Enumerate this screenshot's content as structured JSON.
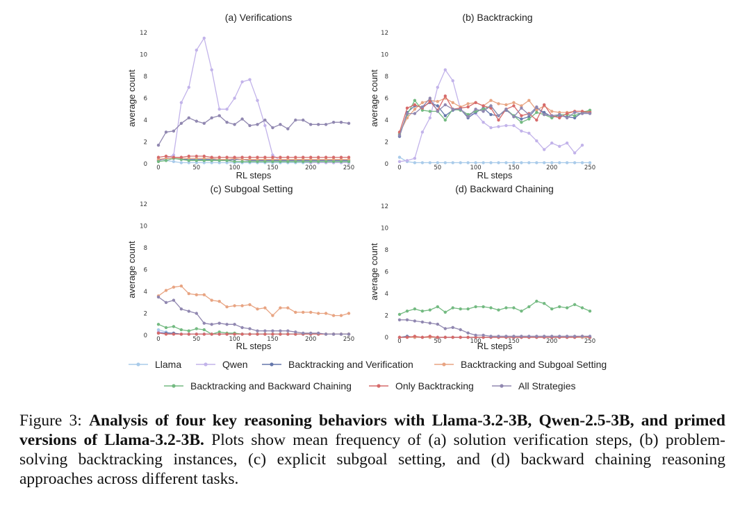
{
  "figure": {
    "caption_label": "Figure 3:",
    "caption_bold": "Analysis of four key reasoning behaviors with Llama-3.2-3B, Qwen-2.5-3B, and primed versions of Llama-3.2-3B.",
    "caption_text": "Plots show mean frequency of (a) solution verification steps, (b) problem-solving backtracking instances, (c) explicit subgoal setting, and (d) backward chaining reasoning approaches across different tasks."
  },
  "legend": {
    "items": [
      {
        "name": "Llama",
        "color": "#a9cbea"
      },
      {
        "name": "Qwen",
        "color": "#c2b3ea"
      },
      {
        "name": "Backtracking and Verification",
        "color": "#6577ab"
      },
      {
        "name": "Backtracking and Subgoal Setting",
        "color": "#e8a482"
      },
      {
        "name": "Backtracking and Backward Chaining",
        "color": "#73ba81"
      },
      {
        "name": "Only Backtracking",
        "color": "#d66a6a"
      },
      {
        "name": "All Strategies",
        "color": "#9087b0"
      }
    ]
  },
  "chart_data": [
    {
      "type": "line",
      "title": "(a) Verifications",
      "xlabel": "RL steps",
      "ylabel": "average count",
      "xlim": [
        0,
        250
      ],
      "ylim": [
        0,
        12
      ],
      "xticks": [
        0,
        50,
        100,
        150,
        200,
        250
      ],
      "yticks": [
        0,
        2,
        4,
        6,
        8,
        10,
        12
      ],
      "x": [
        0,
        10,
        20,
        30,
        40,
        50,
        60,
        70,
        80,
        90,
        100,
        110,
        120,
        130,
        140,
        150,
        160,
        170,
        180,
        190,
        200,
        210,
        220,
        230,
        240,
        250
      ],
      "series": [
        {
          "name": "Llama",
          "values": [
            0.5,
            0.3,
            0.2,
            0.1,
            0.1,
            0.1,
            0.1,
            0.1,
            0.1,
            0.1,
            0.1,
            0.1,
            0.1,
            0.1,
            0.1,
            0.1,
            0.1,
            0.1,
            0.1,
            0.1,
            0.1,
            0.1,
            0.1,
            0.1,
            0.1,
            0.1
          ]
        },
        {
          "name": "Qwen",
          "values": [
            0.3,
            0.5,
            0.8,
            5.6,
            7.0,
            10.4,
            11.5,
            8.6,
            5.0,
            5.0,
            6.0,
            7.5,
            7.7,
            5.8,
            3.5,
            0.8,
            0.3,
            0.2,
            0.2,
            0.2,
            0.1,
            0.1,
            0.1,
            0.1,
            0.1,
            0.1
          ]
        },
        {
          "name": "Backtracking and Verification",
          "values": [
            0.3,
            0.5,
            0.5,
            0.4,
            0.4,
            0.4,
            0.4,
            0.4,
            0.4,
            0.3,
            0.4,
            0.4,
            0.3,
            0.3,
            0.3,
            0.3,
            0.3,
            0.3,
            0.3,
            0.3,
            0.3,
            0.3,
            0.3,
            0.3,
            0.3,
            0.3
          ]
        },
        {
          "name": "Backtracking and Subgoal Setting",
          "values": [
            0.4,
            0.5,
            0.5,
            0.5,
            0.5,
            0.5,
            0.5,
            0.5,
            0.4,
            0.4,
            0.5,
            0.4,
            0.4,
            0.4,
            0.4,
            0.4,
            0.4,
            0.4,
            0.4,
            0.4,
            0.4,
            0.4,
            0.4,
            0.4,
            0.4,
            0.4
          ]
        },
        {
          "name": "Backtracking and Backward Chaining",
          "values": [
            0.2,
            0.3,
            0.5,
            0.4,
            0.3,
            0.3,
            0.3,
            0.3,
            0.3,
            0.3,
            0.2,
            0.2,
            0.2,
            0.2,
            0.2,
            0.2,
            0.2,
            0.2,
            0.2,
            0.2,
            0.2,
            0.2,
            0.2,
            0.2,
            0.2,
            0.2
          ]
        },
        {
          "name": "Only Backtracking",
          "values": [
            0.6,
            0.7,
            0.6,
            0.6,
            0.7,
            0.7,
            0.7,
            0.6,
            0.6,
            0.6,
            0.6,
            0.6,
            0.6,
            0.6,
            0.6,
            0.6,
            0.6,
            0.6,
            0.6,
            0.6,
            0.6,
            0.6,
            0.6,
            0.6,
            0.6,
            0.6
          ]
        },
        {
          "name": "All Strategies",
          "values": [
            1.7,
            2.9,
            3.0,
            3.7,
            4.2,
            3.9,
            3.7,
            4.2,
            4.4,
            3.8,
            3.6,
            4.1,
            3.5,
            3.6,
            4.0,
            3.3,
            3.6,
            3.2,
            4.0,
            4.0,
            3.6,
            3.6,
            3.6,
            3.8,
            3.8,
            3.7
          ]
        }
      ]
    },
    {
      "type": "line",
      "title": "(b) Backtracking",
      "xlabel": "RL steps",
      "ylabel": "average count",
      "xlim": [
        0,
        250
      ],
      "ylim": [
        0,
        12
      ],
      "xticks": [
        0,
        50,
        100,
        150,
        200,
        250
      ],
      "yticks": [
        0,
        2,
        4,
        6,
        8,
        10,
        12
      ],
      "x": [
        0,
        10,
        20,
        30,
        40,
        50,
        60,
        70,
        80,
        90,
        100,
        110,
        120,
        130,
        140,
        150,
        160,
        170,
        180,
        190,
        200,
        210,
        220,
        230,
        240,
        250
      ],
      "series": [
        {
          "name": "Llama",
          "values": [
            0.6,
            0.2,
            0.1,
            0.1,
            0.1,
            0.1,
            0.1,
            0.1,
            0.1,
            0.1,
            0.1,
            0.1,
            0.1,
            0.1,
            0.1,
            0.1,
            0.1,
            0.1,
            0.1,
            0.1,
            0.1,
            0.1,
            0.1,
            0.1,
            0.1,
            0.1
          ]
        },
        {
          "name": "Qwen",
          "values": [
            0.2,
            0.3,
            0.5,
            2.9,
            4.2,
            7.0,
            8.6,
            7.6,
            5.0,
            4.5,
            4.6,
            3.8,
            3.3,
            3.4,
            3.5,
            3.5,
            3.0,
            2.8,
            2.1,
            1.3,
            1.9,
            1.6,
            1.9,
            1.0,
            1.7,
            null
          ]
        },
        {
          "name": "Backtracking and Verification",
          "values": [
            2.5,
            4.7,
            5.3,
            5.2,
            5.6,
            5.3,
            4.4,
            4.9,
            5.0,
            4.2,
            4.7,
            5.1,
            4.5,
            4.4,
            4.9,
            4.4,
            4.1,
            4.3,
            5.1,
            4.7,
            4.3,
            4.4,
            4.3,
            4.2,
            4.7,
            4.7
          ]
        },
        {
          "name": "Backtracking and Subgoal Setting",
          "values": [
            2.8,
            4.2,
            5.0,
            5.6,
            5.8,
            5.7,
            6.0,
            5.6,
            5.2,
            5.5,
            5.6,
            5.3,
            5.8,
            5.5,
            5.4,
            5.6,
            5.3,
            5.8,
            4.9,
            5.3,
            4.8,
            4.7,
            4.7,
            4.8,
            4.8,
            4.8
          ]
        },
        {
          "name": "Backtracking and Backward Chaining",
          "values": [
            2.7,
            4.5,
            5.8,
            4.9,
            4.8,
            4.8,
            4.0,
            5.0,
            4.9,
            4.5,
            4.8,
            5.0,
            5.3,
            4.4,
            5.0,
            4.4,
            3.8,
            4.1,
            4.7,
            4.5,
            4.2,
            4.5,
            4.5,
            4.4,
            4.7,
            4.9
          ]
        },
        {
          "name": "Only Backtracking",
          "values": [
            2.9,
            5.1,
            5.4,
            5.1,
            5.7,
            4.9,
            6.2,
            5.0,
            5.1,
            5.2,
            5.6,
            5.3,
            5.1,
            4.0,
            5.0,
            5.3,
            4.4,
            4.6,
            4.0,
            5.4,
            4.4,
            4.2,
            4.6,
            4.8,
            4.8,
            4.7
          ]
        },
        {
          "name": "All Strategies",
          "values": [
            2.6,
            4.6,
            4.6,
            5.2,
            6.0,
            4.8,
            5.4,
            5.0,
            5.0,
            4.3,
            5.0,
            4.8,
            5.3,
            4.4,
            5.0,
            4.3,
            5.1,
            4.5,
            5.2,
            4.5,
            4.4,
            4.5,
            4.2,
            4.7,
            4.6,
            4.6
          ]
        }
      ]
    },
    {
      "type": "line",
      "title": "(c) Subgoal Setting",
      "xlabel": "RL steps",
      "ylabel": "average count",
      "xlim": [
        0,
        250
      ],
      "ylim": [
        0,
        12
      ],
      "xticks": [
        0,
        50,
        100,
        150,
        200,
        250
      ],
      "yticks": [
        0,
        2,
        4,
        6,
        8,
        10,
        12
      ],
      "x": [
        0,
        10,
        20,
        30,
        40,
        50,
        60,
        70,
        80,
        90,
        100,
        110,
        120,
        130,
        140,
        150,
        160,
        170,
        180,
        190,
        200,
        210,
        220,
        230,
        240,
        250
      ],
      "series": [
        {
          "name": "Llama",
          "values": [
            0.5,
            0.3,
            0.1,
            0.1,
            0.1,
            0.1,
            0.1,
            0.1,
            0.1,
            0.1,
            0.1,
            0.1,
            0.1,
            0.1,
            0.1,
            0.1,
            0.1,
            0.1,
            0.1,
            0.1,
            0.1,
            0.1,
            0.1,
            0.1,
            0.1,
            0.1
          ]
        },
        {
          "name": "Qwen",
          "values": [
            0.3,
            0.2,
            0.1,
            0.1,
            0.1,
            0.1,
            0.1,
            0.1,
            0.1,
            0.1,
            0.1,
            0.1,
            0.1,
            0.1,
            0.1,
            0.1,
            0.1,
            0.1,
            0.1,
            0.1,
            0.1,
            0.1,
            0.1,
            0.1,
            0.1,
            0.1
          ]
        },
        {
          "name": "Backtracking and Verification",
          "values": [
            0.2,
            0.2,
            0.2,
            0.1,
            0.1,
            0.1,
            0.1,
            0.1,
            0.1,
            0.1,
            0.1,
            0.1,
            0.1,
            0.1,
            0.1,
            0.1,
            0.1,
            0.1,
            0.1,
            0.1,
            0.1,
            0.1,
            0.1,
            0.1,
            0.1,
            0.1
          ]
        },
        {
          "name": "Backtracking and Subgoal Setting",
          "values": [
            3.6,
            4.1,
            4.4,
            4.5,
            3.8,
            3.7,
            3.7,
            3.2,
            3.1,
            2.6,
            2.7,
            2.7,
            2.8,
            2.4,
            2.5,
            1.8,
            2.5,
            2.5,
            2.1,
            2.1,
            2.1,
            2.0,
            2.0,
            1.8,
            1.8,
            2.0
          ]
        },
        {
          "name": "Backtracking and Backward Chaining",
          "values": [
            1.0,
            0.7,
            0.8,
            0.5,
            0.4,
            0.6,
            0.5,
            0.1,
            0.3,
            0.2,
            0.2,
            0.1,
            0.1,
            0.1,
            0.1,
            0.1,
            0.1,
            0.1,
            0.1,
            0.1,
            0.1,
            0.1,
            0.1,
            0.1,
            0.1,
            0.1
          ]
        },
        {
          "name": "Only Backtracking",
          "values": [
            0.2,
            0.1,
            0.1,
            0.1,
            0.1,
            0.1,
            0.1,
            0.1,
            0.1,
            0.1,
            0.1,
            0.1,
            0.1,
            0.1,
            0.1,
            0.1,
            0.1,
            0.1,
            0.1,
            0.1,
            0.1,
            0.1,
            0.1,
            0.1,
            0.1,
            0.1
          ]
        },
        {
          "name": "All Strategies",
          "values": [
            3.5,
            3.0,
            3.2,
            2.4,
            2.2,
            2.0,
            1.1,
            1.0,
            1.1,
            1.0,
            1.0,
            0.7,
            0.6,
            0.4,
            0.4,
            0.4,
            0.4,
            0.4,
            0.3,
            0.2,
            0.2,
            0.2,
            0.1,
            0.1,
            0.1,
            0.1
          ]
        }
      ]
    },
    {
      "type": "line",
      "title": "(d) Backward Chaining",
      "xlabel": "RL steps",
      "ylabel": "average count",
      "xlim": [
        0,
        250
      ],
      "ylim": [
        0,
        12
      ],
      "xticks": [
        0,
        50,
        100,
        150,
        200,
        250
      ],
      "yticks": [
        0,
        2,
        4,
        6,
        8,
        10,
        12
      ],
      "x": [
        0,
        10,
        20,
        30,
        40,
        50,
        60,
        70,
        80,
        90,
        100,
        110,
        120,
        130,
        140,
        150,
        160,
        170,
        180,
        190,
        200,
        210,
        220,
        230,
        240,
        250
      ],
      "series": [
        {
          "name": "Llama",
          "values": [
            0.0,
            0.0,
            0.0,
            0.0,
            0.0,
            0.0,
            0.0,
            0.0,
            0.0,
            0.0,
            0.0,
            0.0,
            0.0,
            0.0,
            0.0,
            0.0,
            0.0,
            0.0,
            0.0,
            0.0,
            0.0,
            0.0,
            0.0,
            0.0,
            0.0,
            0.0
          ]
        },
        {
          "name": "Qwen",
          "values": [
            0.0,
            0.0,
            0.0,
            0.0,
            0.0,
            0.0,
            0.0,
            0.0,
            0.0,
            0.0,
            0.0,
            0.0,
            0.0,
            0.0,
            0.0,
            0.0,
            0.0,
            0.0,
            0.0,
            0.0,
            0.0,
            0.0,
            0.0,
            0.0,
            0.0,
            0.0
          ]
        },
        {
          "name": "Backtracking and Verification",
          "values": [
            0.0,
            0.1,
            0.0,
            0.0,
            0.0,
            0.0,
            0.0,
            0.0,
            0.0,
            0.0,
            0.0,
            0.0,
            0.0,
            0.0,
            0.0,
            0.0,
            0.0,
            0.0,
            0.0,
            0.0,
            0.0,
            0.0,
            0.0,
            0.0,
            0.0,
            0.0
          ]
        },
        {
          "name": "Backtracking and Subgoal Setting",
          "values": [
            0.0,
            0.0,
            0.0,
            0.0,
            0.0,
            0.0,
            0.0,
            0.0,
            0.0,
            0.0,
            0.0,
            0.0,
            0.0,
            0.0,
            0.0,
            0.0,
            0.0,
            0.0,
            0.0,
            0.0,
            0.0,
            0.0,
            0.0,
            0.0,
            0.0,
            0.0
          ]
        },
        {
          "name": "Backtracking and Backward Chaining",
          "values": [
            2.1,
            2.4,
            2.6,
            2.4,
            2.5,
            2.8,
            2.3,
            2.7,
            2.6,
            2.6,
            2.8,
            2.8,
            2.7,
            2.5,
            2.7,
            2.7,
            2.4,
            2.8,
            3.3,
            3.1,
            2.6,
            2.8,
            2.7,
            3.0,
            2.7,
            2.4
          ]
        },
        {
          "name": "Only Backtracking",
          "values": [
            0.0,
            0.0,
            0.1,
            0.0,
            0.1,
            0.0,
            0.0,
            0.0,
            0.0,
            0.0,
            0.0,
            0.0,
            0.0,
            0.0,
            0.0,
            0.0,
            0.0,
            0.0,
            0.0,
            0.0,
            0.0,
            0.0,
            0.0,
            0.0,
            0.1,
            0.0
          ]
        },
        {
          "name": "All Strategies",
          "values": [
            1.6,
            1.6,
            1.5,
            1.4,
            1.3,
            1.2,
            0.8,
            0.9,
            0.7,
            0.4,
            0.2,
            0.2,
            0.1,
            0.1,
            0.1,
            0.1,
            0.1,
            0.1,
            0.1,
            0.1,
            0.1,
            0.1,
            0.1,
            0.1,
            0.1,
            0.1
          ]
        }
      ]
    }
  ]
}
